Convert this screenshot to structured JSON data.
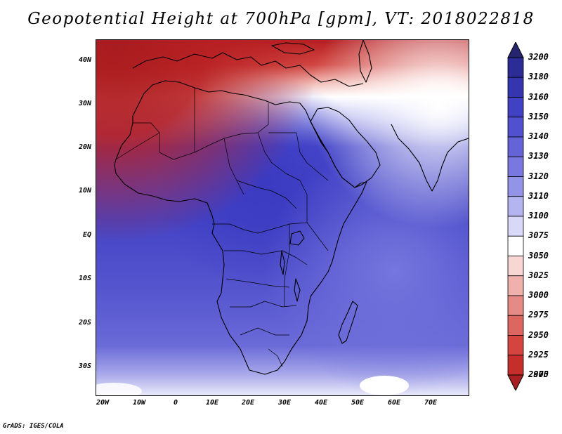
{
  "title": "Geopotential Height at 700hPa [gpm], VT: 2018022818",
  "credit": "GrADS: IGES/COLA",
  "map": {
    "lat_labels": [
      "40N",
      "30N",
      "20N",
      "10N",
      "EQ",
      "10S",
      "20S",
      "30S"
    ],
    "lon_labels": [
      "20W",
      "10W",
      "0",
      "10E",
      "20E",
      "30E",
      "40E",
      "50E",
      "60E",
      "70E"
    ],
    "lat_range": [
      -36,
      45
    ],
    "lon_range": [
      -22,
      80
    ],
    "field_colors": {
      "high_north": "#b71f22",
      "mid_red": "#e0585a",
      "light_red": "#f2b6b0",
      "white_band": "#ffffff",
      "light_blue": "#bcbcf0",
      "mid_blue": "#5d5dd6",
      "deep_blue": "#4040c8",
      "indigo": "#3b3bb8"
    }
  },
  "colorbar": {
    "levels": [
      "3200",
      "3180",
      "3160",
      "3150",
      "3140",
      "3130",
      "3120",
      "3110",
      "3100",
      "3075",
      "3050",
      "3025",
      "3000",
      "2975",
      "2950",
      "2925",
      "2900",
      "2875"
    ],
    "colors": [
      "#25256f",
      "#2c2c96",
      "#3535b0",
      "#4141c4",
      "#5151d0",
      "#6464d8",
      "#7878e0",
      "#9393e8",
      "#b4b4f0",
      "#d9d9f7",
      "#ffffff",
      "#f8d6d3",
      "#f0b0ab",
      "#e58a85",
      "#dc6761",
      "#d4453f",
      "#c42f2c",
      "#a82022"
    ]
  }
}
